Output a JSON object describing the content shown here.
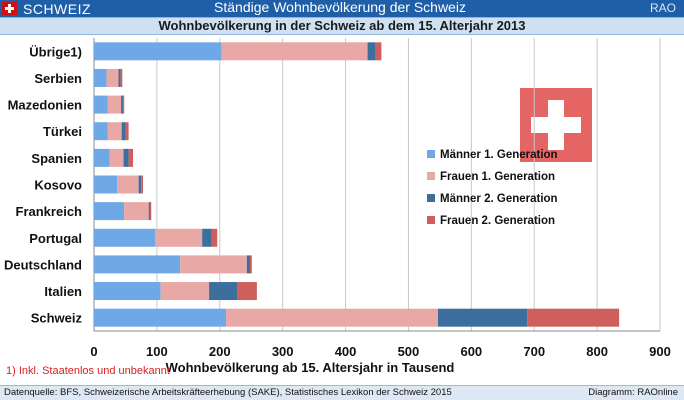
{
  "header": {
    "brand": "SCHWEIZ",
    "title": "Ständige Wohnbevölkerung der Schweiz",
    "corner": "RAO"
  },
  "subtitle": "Wohnbevölkerung in der Schweiz ab dem 15. Alterjahr 2013",
  "chart_data": {
    "type": "bar",
    "orientation": "horizontal",
    "stacked": true,
    "categories": [
      "Übrige1)",
      "Serbien",
      "Mazedonien",
      "Türkei",
      "Spanien",
      "Kosovo",
      "Frankreich",
      "Portugal",
      "Deutschland",
      "Italien",
      "Schweiz"
    ],
    "series": [
      {
        "name": "Männer 1. Generation",
        "color": "#6fa8e6",
        "values": [
          203,
          20,
          22,
          22,
          25,
          37,
          48,
          97,
          137,
          106,
          210
        ]
      },
      {
        "name": "Frauen 1. Generation",
        "color": "#e8a8a6",
        "values": [
          232,
          19,
          21,
          22,
          22,
          34,
          39,
          75,
          106,
          77,
          337
        ]
      },
      {
        "name": "Männer 2. Generation",
        "color": "#3d6f9e",
        "values": [
          13,
          3,
          3,
          6,
          8,
          4,
          2,
          15,
          5,
          45,
          142
        ]
      },
      {
        "name": "Frauen 2. Generation",
        "color": "#cf5f5c",
        "values": [
          9,
          3,
          2,
          5,
          7,
          3,
          2,
          9,
          3,
          31,
          146
        ]
      }
    ],
    "xlabel": "Wohnbevölkerung ab 15. Altersjahr  in Tausend",
    "xlim": [
      0,
      900
    ],
    "xticks": [
      "0",
      "100",
      "200",
      "300",
      "400",
      "500",
      "600",
      "700",
      "800",
      "900"
    ],
    "grid": true,
    "legend_position": "right"
  },
  "footnote": "1) Inkl. Staatenlos und unbekannt",
  "footer": {
    "source": "Datenquelle: BFS, Schweizerische Arbeitskräfteerhebung (SAKE), Statistisches Lexikon der Schweiz 2015",
    "credit": "Diagramm: RAOnline"
  }
}
